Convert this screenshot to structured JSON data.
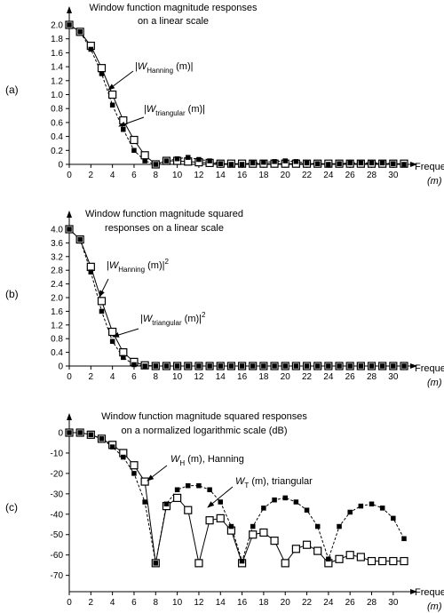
{
  "chart_data": [
    {
      "type": "line",
      "panel_label": "(a)",
      "title": [
        "Window function magnitude responses",
        "on a linear scale"
      ],
      "xlabel": [
        "Frequency",
        "(m)"
      ],
      "x": [
        0,
        1,
        2,
        3,
        4,
        5,
        6,
        7,
        8,
        9,
        10,
        11,
        12,
        13,
        14,
        15,
        16,
        17,
        18,
        19,
        20,
        21,
        22,
        23,
        24,
        25,
        26,
        27,
        28,
        29,
        30,
        31
      ],
      "xlim": [
        0,
        31
      ],
      "xticks": [
        0,
        2,
        4,
        6,
        8,
        10,
        12,
        14,
        16,
        18,
        20,
        22,
        24,
        26,
        28,
        30
      ],
      "ylim": [
        0,
        2
      ],
      "yticks": [
        0,
        0.2,
        0.4,
        0.6,
        0.8,
        {
          "value": 1,
          "label": "1.0"
        },
        1.2,
        1.4,
        1.6,
        1.8,
        {
          "value": 2,
          "label": "2.0"
        }
      ],
      "series": [
        {
          "name": "Hanning",
          "color": "#000000",
          "marker": "open-square",
          "dashed": false,
          "values": [
            2.0,
            1.9,
            1.7,
            1.38,
            1.0,
            0.63,
            0.35,
            0.13,
            0.0,
            0.05,
            0.05,
            0.04,
            0.03,
            0.02,
            0.01,
            0.01,
            0.01,
            0.01,
            0.01,
            0.01,
            0.01,
            0.01,
            0.01,
            0.01,
            0.01,
            0.01,
            0.01,
            0.01,
            0.01,
            0.01,
            0.01,
            0.01
          ]
        },
        {
          "name": "triangular",
          "color": "#000000",
          "marker": "filled-square",
          "dashed": true,
          "values": [
            2.0,
            1.9,
            1.65,
            1.3,
            0.85,
            0.5,
            0.2,
            0.05,
            0.0,
            0.05,
            0.08,
            0.1,
            0.07,
            0.05,
            0.01,
            0.0,
            0.0,
            0.02,
            0.03,
            0.04,
            0.05,
            0.04,
            0.02,
            0.01,
            0.0,
            0.01,
            0.02,
            0.02,
            0.02,
            0.02,
            0.01,
            0.0
          ]
        }
      ],
      "annotations": [
        {
          "text": "|W",
          "sub": "Hanning",
          "after": " (m)|"
        },
        {
          "text": "|W",
          "sub": "triangular",
          "after": " (m)|"
        }
      ]
    },
    {
      "type": "line",
      "panel_label": "(b)",
      "title": [
        "Window function magnitude squared",
        "responses on a linear scale"
      ],
      "xlabel": [
        "Frequency",
        "(m)"
      ],
      "x": [
        0,
        1,
        2,
        3,
        4,
        5,
        6,
        7,
        8,
        9,
        10,
        11,
        12,
        13,
        14,
        15,
        16,
        17,
        18,
        19,
        20,
        21,
        22,
        23,
        24,
        25,
        26,
        27,
        28,
        29,
        30,
        31
      ],
      "xlim": [
        0,
        31
      ],
      "xticks": [
        0,
        2,
        4,
        6,
        8,
        10,
        12,
        14,
        16,
        18,
        20,
        22,
        24,
        26,
        28,
        30
      ],
      "ylim": [
        0,
        4
      ],
      "yticks": [
        0,
        0.4,
        0.8,
        1.2,
        1.6,
        {
          "value": 2,
          "label": "2.0"
        },
        2.4,
        2.8,
        3.2,
        3.6,
        {
          "value": 4,
          "label": "4.0"
        }
      ],
      "series": [
        {
          "name": "Hanning",
          "color": "#000000",
          "marker": "open-square",
          "dashed": false,
          "values": [
            4.0,
            3.7,
            2.9,
            1.9,
            1.0,
            0.4,
            0.12,
            0.02,
            0,
            0,
            0,
            0,
            0,
            0,
            0,
            0,
            0,
            0,
            0,
            0,
            0,
            0,
            0,
            0,
            0,
            0,
            0,
            0,
            0,
            0,
            0,
            0
          ]
        },
        {
          "name": "triangular",
          "color": "#000000",
          "marker": "filled-square",
          "dashed": true,
          "values": [
            4.0,
            3.7,
            2.75,
            1.6,
            0.72,
            0.25,
            0.04,
            0,
            0,
            0,
            0,
            0,
            0,
            0,
            0,
            0,
            0,
            0,
            0,
            0,
            0,
            0,
            0,
            0,
            0,
            0,
            0,
            0,
            0,
            0,
            0,
            0
          ]
        }
      ],
      "annotations": [
        {
          "text": "|W",
          "sub": "Hanning",
          "after": " (m)|",
          "sup": "2"
        },
        {
          "text": "|W",
          "sub": "triangular",
          "after": " (m)|",
          "sup": "2"
        }
      ]
    },
    {
      "type": "line",
      "panel_label": "(c)",
      "title": [
        "Window function magnitude squared responses",
        "on a normalized logarithmic scale (dB)"
      ],
      "xlabel": [
        "Frequency",
        "(m)"
      ],
      "x": [
        0,
        1,
        2,
        3,
        4,
        5,
        6,
        7,
        8,
        9,
        10,
        11,
        12,
        13,
        14,
        15,
        16,
        17,
        18,
        19,
        20,
        21,
        22,
        23,
        24,
        25,
        26,
        27,
        28,
        29,
        30,
        31
      ],
      "xlim": [
        0,
        31
      ],
      "xticks": [
        0,
        2,
        4,
        6,
        8,
        10,
        12,
        14,
        16,
        18,
        20,
        22,
        24,
        26,
        28,
        30
      ],
      "ylim": [
        -78,
        0
      ],
      "yticks": [
        0,
        -10,
        -20,
        -30,
        -40,
        -50,
        -60,
        -70
      ],
      "series": [
        {
          "name": "Hanning",
          "color": "#000000",
          "marker": "open-square",
          "dashed": false,
          "values": [
            0,
            0,
            -1,
            -3,
            -6,
            -10,
            -16,
            -24,
            -64,
            -36,
            -32,
            -38,
            -64,
            -43,
            -42,
            -48,
            -64,
            -50,
            -49,
            -53,
            -64,
            -57,
            -55,
            -58,
            -64,
            -62,
            -60,
            -61,
            -63,
            -63,
            -63,
            -63
          ]
        },
        {
          "name": "triangular",
          "color": "#000000",
          "marker": "filled-square",
          "dashed": true,
          "values": [
            0,
            0,
            -1,
            -3,
            -7,
            -12,
            -20,
            -34,
            -64,
            -35,
            -28,
            -26,
            -26,
            -28,
            -34,
            -46,
            -63,
            -46,
            -37,
            -33,
            -32,
            -34,
            -38,
            -46,
            -62,
            -46,
            -39,
            -36,
            -35,
            -37,
            -42,
            -52
          ]
        }
      ],
      "annotations": [
        {
          "text": "W",
          "sub": "H",
          "after": " (m), Hanning"
        },
        {
          "text": "W",
          "sub": "T",
          "after": " (m), triangular"
        }
      ]
    }
  ]
}
